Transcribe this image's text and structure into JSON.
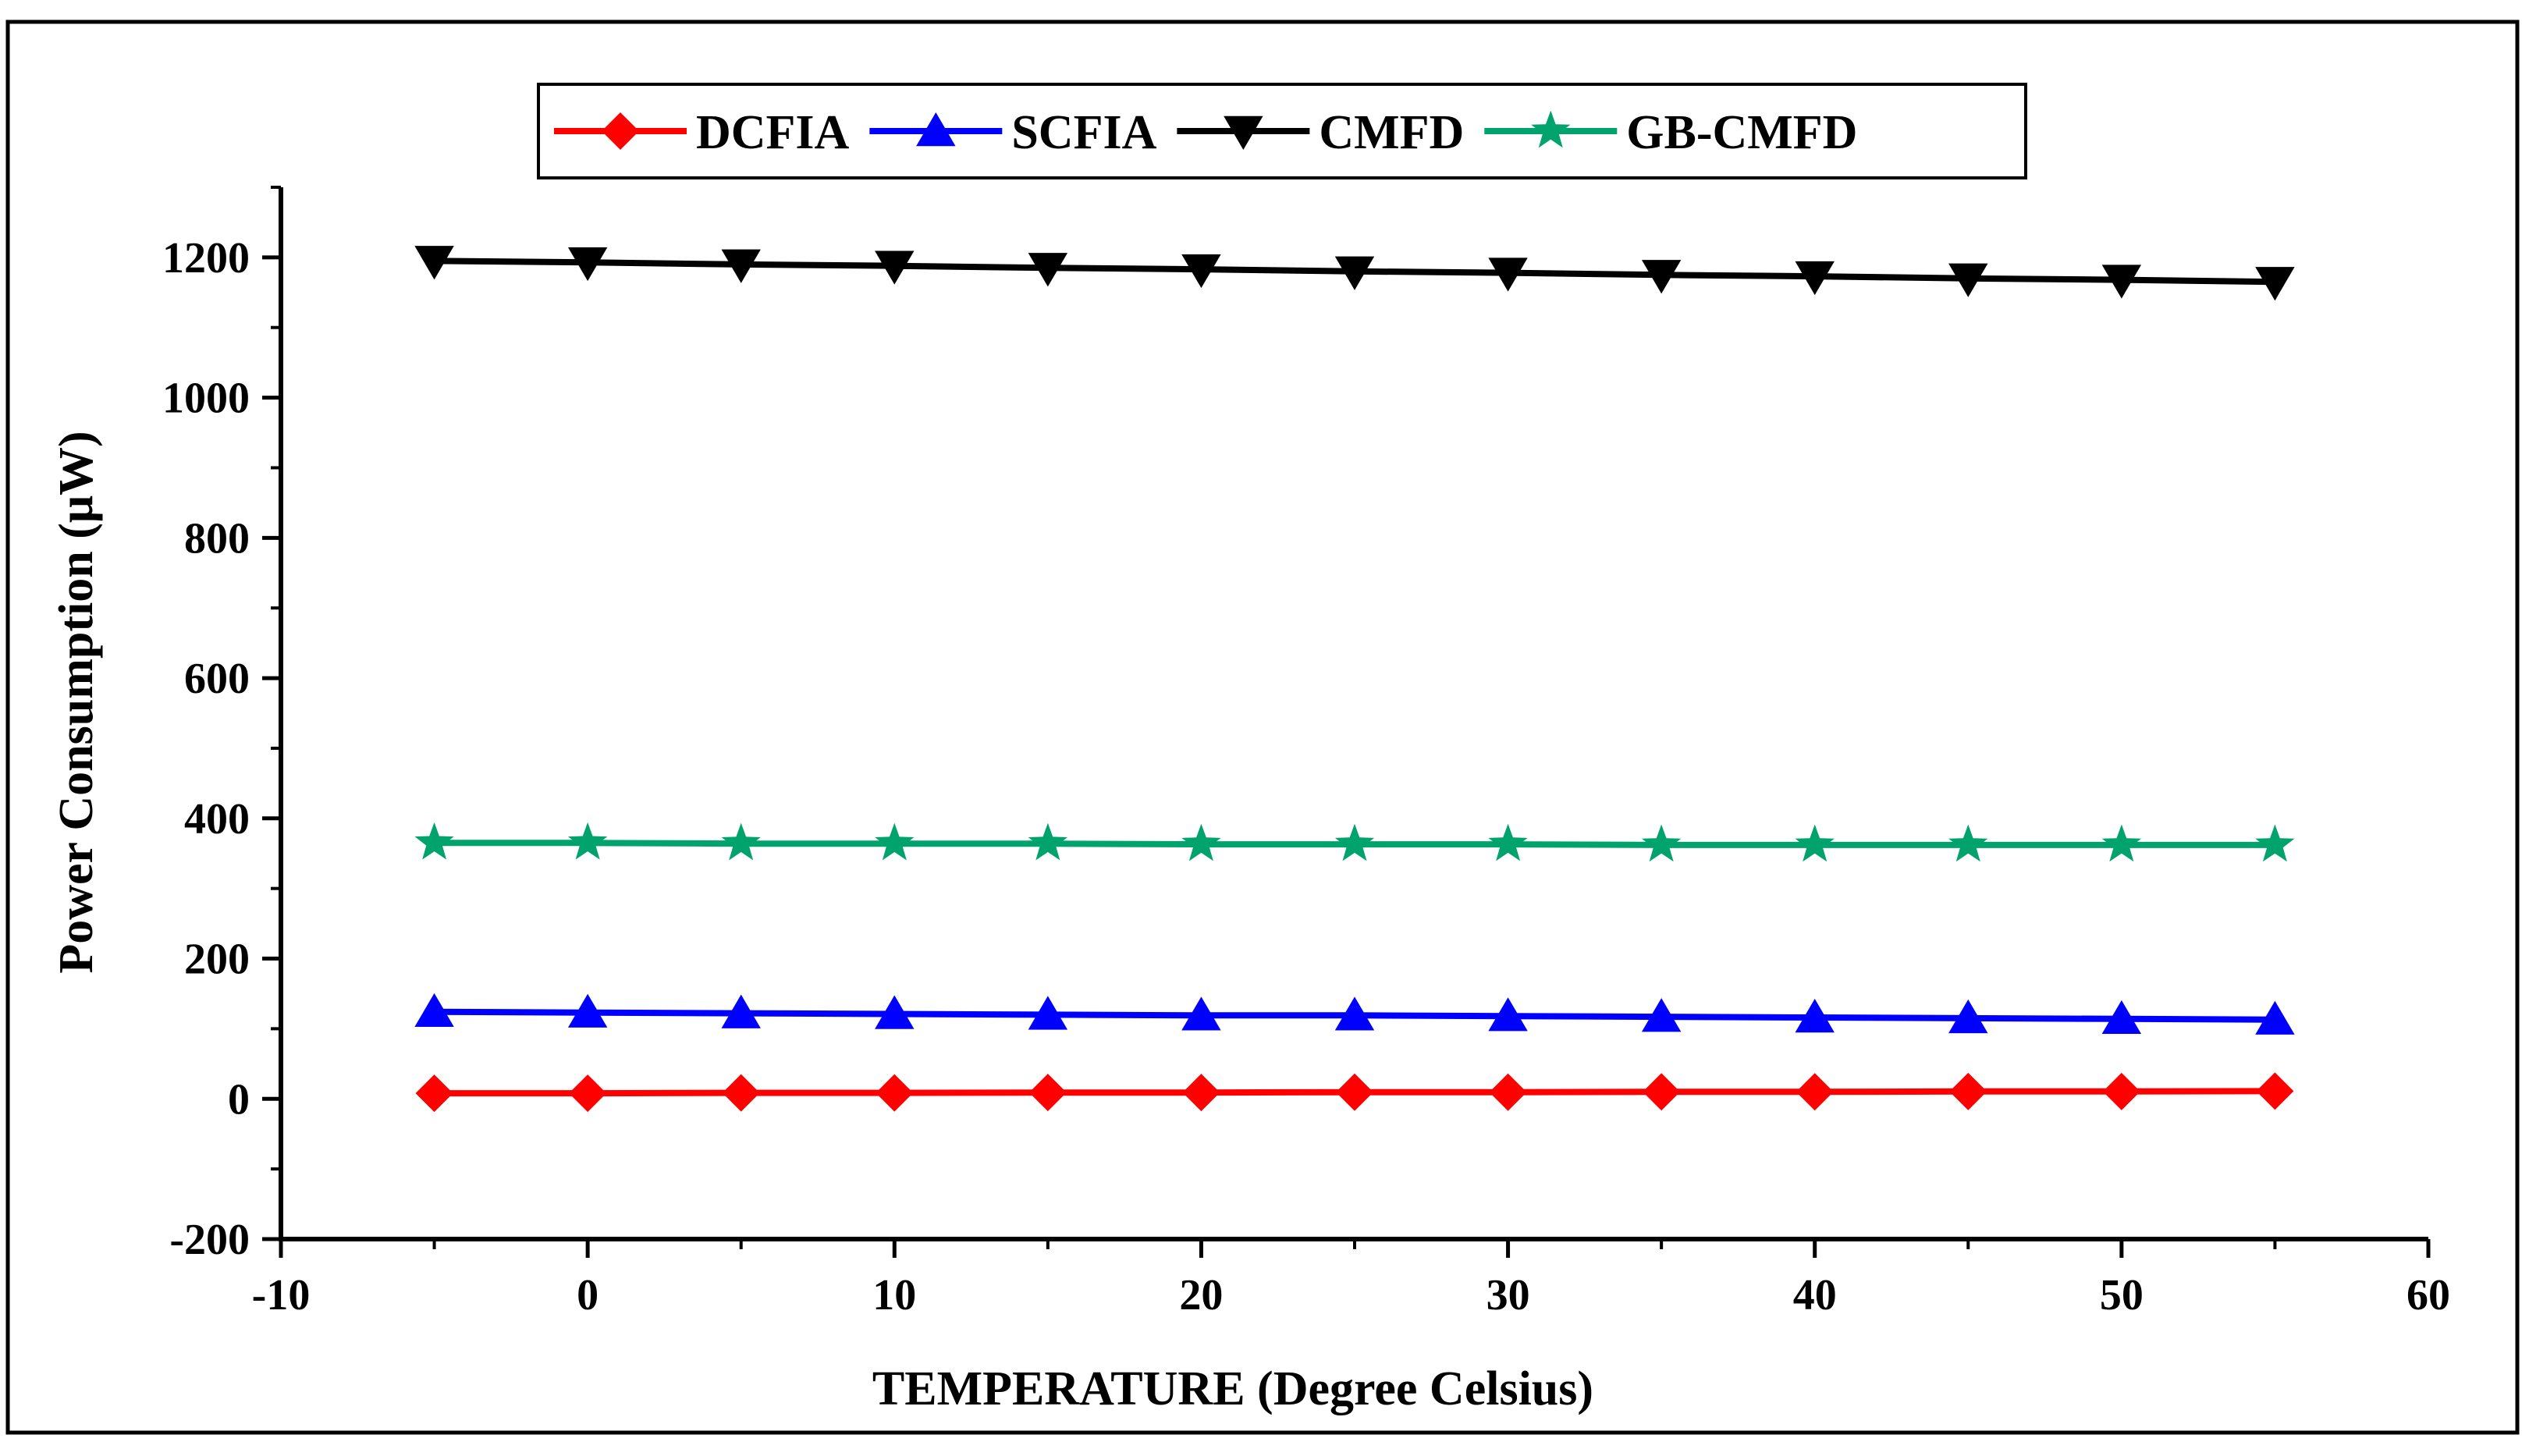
{
  "chart_data": {
    "type": "line",
    "title": "",
    "xlabel": "TEMPERATURE (Degree Celsius)",
    "ylabel": "Power Consumption (μW)",
    "xlim": [
      -10,
      60
    ],
    "ylim": [
      -200,
      1300
    ],
    "xticks": [
      -10,
      0,
      10,
      20,
      30,
      40,
      50,
      60
    ],
    "yticks": [
      -200,
      0,
      200,
      400,
      600,
      800,
      1000,
      1200
    ],
    "x": [
      -5,
      0,
      5,
      10,
      15,
      20,
      25,
      30,
      35,
      40,
      45,
      50,
      55
    ],
    "legend_position": "top-center",
    "grid": false,
    "series": [
      {
        "name": "DCFIA",
        "color": "#ff0000",
        "marker": "diamond",
        "values": [
          8,
          8,
          8.5,
          8.5,
          9,
          9,
          9.5,
          9.5,
          10,
          10,
          10.5,
          10.5,
          11
        ]
      },
      {
        "name": "SCFIA",
        "color": "#0000ff",
        "marker": "triangle-up",
        "values": [
          124,
          123,
          122,
          121,
          120,
          119,
          119,
          118,
          117,
          116,
          115,
          114,
          113
        ]
      },
      {
        "name": "CMFD",
        "color": "#000000",
        "marker": "triangle-down",
        "values": [
          1195,
          1193,
          1190,
          1188,
          1185,
          1183,
          1180,
          1178,
          1175,
          1173,
          1170,
          1168,
          1165
        ]
      },
      {
        "name": "GB-CMFD",
        "color": "#00a36c",
        "marker": "star",
        "values": [
          365,
          365,
          364,
          364,
          364,
          363,
          363,
          363,
          362,
          362,
          362,
          362,
          362
        ]
      }
    ]
  }
}
